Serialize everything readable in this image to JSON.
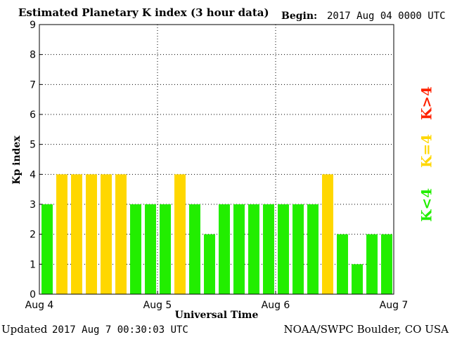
{
  "header": {
    "title": "Estimated Planetary K index (3 hour data)",
    "begin_label": "Begin:",
    "begin_value": "2017 Aug 04 0000 UTC"
  },
  "footer": {
    "updated_label": "Updated",
    "updated_value": "2017 Aug  7 00:30:03 UTC",
    "source": "NOAA/SWPC Boulder, CO USA"
  },
  "legend": [
    {
      "label": "K>4",
      "color": "#ff2200"
    },
    {
      "label": "K=4",
      "color": "#ffd700"
    },
    {
      "label": "K<4",
      "color": "#22ee00"
    }
  ],
  "chart_data": {
    "type": "bar",
    "title": "Estimated Planetary K index (3 hour data)",
    "xlabel": "Universal Time",
    "ylabel": "Kp index",
    "ylim": [
      0,
      9
    ],
    "yticks": [
      "0",
      "1",
      "2",
      "3",
      "4",
      "5",
      "6",
      "7",
      "8",
      "9"
    ],
    "xticks": [
      "Aug 4",
      "Aug 5",
      "Aug 6",
      "Aug 7"
    ],
    "interval_hours": 3,
    "values": [
      3,
      4,
      4,
      4,
      4,
      4,
      3,
      3,
      3,
      4,
      3,
      2,
      3,
      3,
      3,
      3,
      3,
      3,
      3,
      4,
      2,
      1,
      2,
      2
    ],
    "colors": {
      "below": "#22ee00",
      "equal": "#ffd700",
      "above": "#ff2200"
    },
    "grid": true
  }
}
